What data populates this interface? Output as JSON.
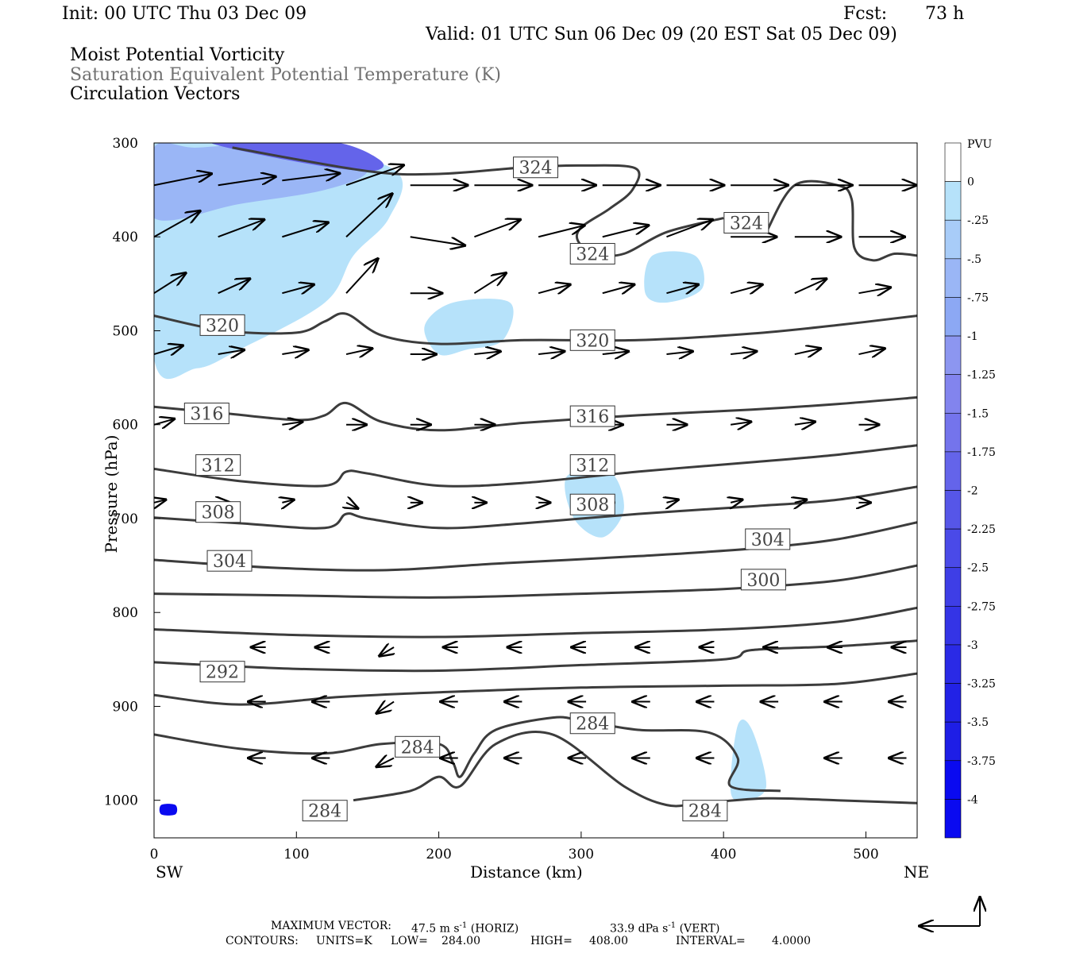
{
  "header": {
    "init": "Init: 00 UTC Thu 03 Dec 09",
    "fcst_label": "Fcst:",
    "fcst_hours": "73 h",
    "valid": "Valid: 01 UTC Sun 06 Dec 09 (20 EST Sat 05 Dec 09)",
    "field1": "Moist Potential Vorticity",
    "field2": "Saturation Equivalent Potential Temperature (K)",
    "field3": "Circulation Vectors"
  },
  "footer": {
    "max_vector_label": "MAXIMUM VECTOR:",
    "max_horiz": "47.5 m s",
    "max_horiz_unit": "(HORIZ)",
    "max_vert": "33.9 dPa s",
    "max_vert_unit": "(VERT)",
    "exp": "-1",
    "contours_label": "CONTOURS:",
    "units": "UNITS=K",
    "low_label": "LOW=",
    "low": "284.00",
    "high_label": "HIGH=",
    "high": "408.00",
    "interval_label": "INTERVAL=",
    "interval": "4.0000"
  },
  "colors": {
    "contour": "#3c3c3c",
    "arrow": "#000000",
    "pv_light": "#b6e2fa",
    "pv_mid": "#8c96f0",
    "pv_dark": "#1e1ee6"
  },
  "chart_data": {
    "type": "cross-section",
    "xlabel": "Distance (km)",
    "ylabel": "Pressure (hPa)",
    "x_ticks": [
      0,
      100,
      200,
      300,
      400,
      500
    ],
    "y_ticks": [
      300,
      400,
      500,
      600,
      700,
      800,
      900,
      1000
    ],
    "xlim": [
      0,
      536
    ],
    "ylim": [
      300,
      1040
    ],
    "y_inverted": true,
    "left_end_label": "SW",
    "right_end_label": "NE",
    "colorbar": {
      "label": "PVU",
      "levels": [
        0,
        -0.25,
        -0.5,
        -0.75,
        -1,
        -1.25,
        -1.5,
        -1.75,
        -2,
        -2.25,
        -2.5,
        -2.75,
        -3,
        -3.25,
        -3.5,
        -3.75,
        -4
      ],
      "level_labels": [
        "0",
        "-.25",
        "-.5",
        "-.75",
        "-1",
        "-1.25",
        "-1.5",
        "-1.75",
        "-2",
        "-2.25",
        "-2.5",
        "-2.75",
        "-3",
        "-3.25",
        "-3.5",
        "-3.75",
        "-4"
      ],
      "colors": [
        "#ffffff",
        "#b6e2fa",
        "#a8ccf8",
        "#9ab6f6",
        "#8ca8f4",
        "#8c96f0",
        "#8284ee",
        "#7474ec",
        "#6464ea",
        "#5656e8",
        "#4a4ae8",
        "#3e3ee6",
        "#3434e6",
        "#2a2ae6",
        "#2222e6",
        "#1e1ee6",
        "#0a0af0"
      ]
    },
    "contour_labels": [
      {
        "value": "324",
        "x": 268,
        "p": 326
      },
      {
        "value": "324",
        "x": 416,
        "p": 385
      },
      {
        "value": "324",
        "x": 308,
        "p": 418
      },
      {
        "value": "320",
        "x": 48,
        "p": 494
      },
      {
        "value": "320",
        "x": 308,
        "p": 510
      },
      {
        "value": "316",
        "x": 37,
        "p": 588
      },
      {
        "value": "316",
        "x": 308,
        "p": 591
      },
      {
        "value": "312",
        "x": 45,
        "p": 643
      },
      {
        "value": "312",
        "x": 308,
        "p": 643
      },
      {
        "value": "308",
        "x": 45,
        "p": 693
      },
      {
        "value": "308",
        "x": 308,
        "p": 685
      },
      {
        "value": "304",
        "x": 53,
        "p": 745
      },
      {
        "value": "304",
        "x": 431,
        "p": 722
      },
      {
        "value": "300",
        "x": 428,
        "p": 765
      },
      {
        "value": "292",
        "x": 48,
        "p": 863
      },
      {
        "value": "284",
        "x": 308,
        "p": 918
      },
      {
        "value": "284",
        "x": 185,
        "p": 943
      },
      {
        "value": "284",
        "x": 120,
        "p": 1011
      },
      {
        "value": "284",
        "x": 387,
        "p": 1011
      }
    ],
    "contours": [
      {
        "value": 324,
        "x": [
          55,
          150,
          200,
          260,
          300,
          338,
          336,
          320,
          300,
          298,
          310,
          330,
          360,
          400
        ],
        "p": [
          305,
          330,
          333,
          326,
          324,
          327,
          350,
          370,
          390,
          405,
          418,
          418,
          395,
          380
        ]
      },
      {
        "value": 324,
        "x": [
          430,
          450,
          480,
          490,
          492,
          505,
          520,
          536
        ],
        "p": [
          395,
          345,
          345,
          360,
          412,
          425,
          418,
          420
        ]
      },
      {
        "value": 320,
        "x": [
          0,
          50,
          100,
          120,
          135,
          160,
          200,
          260,
          340,
          420,
          480,
          536
        ],
        "p": [
          484,
          500,
          502,
          490,
          482,
          505,
          514,
          510,
          510,
          503,
          494,
          484
        ]
      },
      {
        "value": 316,
        "x": [
          0,
          50,
          100,
          120,
          135,
          160,
          200,
          260,
          340,
          420,
          480,
          536
        ],
        "p": [
          581,
          588,
          595,
          590,
          577,
          597,
          606,
          598,
          590,
          584,
          578,
          571
        ]
      },
      {
        "value": 312,
        "x": [
          0,
          60,
          120,
          135,
          150,
          200,
          260,
          340,
          420,
          480,
          536
        ],
        "p": [
          647,
          660,
          665,
          650,
          652,
          665,
          662,
          650,
          640,
          632,
          622
        ]
      },
      {
        "value": 308,
        "x": [
          0,
          60,
          120,
          135,
          150,
          200,
          260,
          340,
          420,
          480,
          536
        ],
        "p": [
          699,
          705,
          710,
          695,
          700,
          710,
          705,
          695,
          687,
          680,
          666
        ]
      },
      {
        "value": 304,
        "x": [
          0,
          80,
          160,
          240,
          340,
          420,
          480,
          536
        ],
        "p": [
          744,
          752,
          755,
          748,
          740,
          732,
          722,
          704
        ]
      },
      {
        "value": 300,
        "x": [
          0,
          100,
          200,
          300,
          400,
          480,
          536
        ],
        "p": [
          780,
          782,
          784,
          780,
          775,
          766,
          750
        ]
      },
      {
        "value": 296,
        "x": [
          0,
          100,
          200,
          300,
          400,
          480,
          536
        ],
        "p": [
          818,
          824,
          826,
          822,
          818,
          810,
          795
        ]
      },
      {
        "value": 292,
        "x": [
          0,
          100,
          200,
          300,
          400,
          420,
          480,
          536
        ],
        "p": [
          853,
          860,
          862,
          856,
          850,
          840,
          836,
          830
        ]
      },
      {
        "value": 288,
        "x": [
          0,
          60,
          130,
          200,
          300,
          400,
          480,
          536
        ],
        "p": [
          888,
          898,
          890,
          885,
          880,
          878,
          876,
          865
        ]
      },
      {
        "value": 284,
        "x": [
          0,
          60,
          120,
          160,
          200,
          210,
          215,
          225,
          240,
          280,
          300,
          340,
          390,
          410,
          405,
          440
        ],
        "p": [
          930,
          945,
          950,
          940,
          940,
          960,
          975,
          950,
          925,
          912,
          915,
          925,
          928,
          955,
          985,
          990
        ]
      },
      {
        "value": 284,
        "x": [
          140,
          180,
          200,
          215,
          240,
          280,
          330,
          360,
          385,
          430,
          480,
          536
        ],
        "p": [
          1000,
          990,
          975,
          985,
          940,
          930,
          985,
          1005,
          1003,
          998,
          1000,
          1003
        ]
      }
    ],
    "pv_patches": [
      {
        "level": -0.25,
        "x": [
          0,
          10,
          50,
          100,
          170,
          165,
          140,
          120,
          60,
          30,
          0
        ],
        "p": [
          300,
          300,
          300,
          300,
          330,
          380,
          420,
          470,
          520,
          540,
          530
        ]
      },
      {
        "level": -0.25,
        "x": [
          190,
          210,
          250,
          245,
          220,
          200
        ],
        "p": [
          495,
          470,
          470,
          510,
          520,
          525
        ]
      },
      {
        "level": -0.25,
        "x": [
          290,
          320,
          330,
          315,
          295
        ],
        "p": [
          655,
          650,
          690,
          720,
          700
        ]
      },
      {
        "level": -0.25,
        "x": [
          350,
          380,
          385,
          360,
          345
        ],
        "p": [
          420,
          420,
          455,
          470,
          460
        ]
      },
      {
        "level": -0.25,
        "x": [
          410,
          420,
          430,
          415,
          405
        ],
        "p": [
          920,
          925,
          985,
          1000,
          990
        ]
      },
      {
        "level": -0.75,
        "x": [
          0,
          30,
          80,
          130,
          150,
          120,
          60,
          0
        ],
        "p": [
          305,
          305,
          300,
          305,
          330,
          350,
          365,
          380
        ]
      },
      {
        "level": -2.0,
        "x": [
          40,
          80,
          130,
          160,
          150,
          100
        ],
        "p": [
          300,
          300,
          300,
          320,
          330,
          320
        ]
      },
      {
        "level": -4.0,
        "x": [
          5,
          15,
          15,
          5
        ],
        "p": [
          1005,
          1005,
          1015,
          1015
        ]
      }
    ],
    "vectors": [
      {
        "x": 0,
        "p": 345,
        "u": 40,
        "w": 8
      },
      {
        "x": 45,
        "p": 345,
        "u": 40,
        "w": 6
      },
      {
        "x": 90,
        "p": 340,
        "u": 40,
        "w": 5
      },
      {
        "x": 135,
        "p": 345,
        "u": 40,
        "w": 14
      },
      {
        "x": 180,
        "p": 345,
        "u": 40,
        "w": 0
      },
      {
        "x": 225,
        "p": 345,
        "u": 40,
        "w": 0
      },
      {
        "x": 270,
        "p": 345,
        "u": 40,
        "w": 0
      },
      {
        "x": 315,
        "p": 345,
        "u": 40,
        "w": 0
      },
      {
        "x": 360,
        "p": 345,
        "u": 40,
        "w": 0
      },
      {
        "x": 405,
        "p": 345,
        "u": 40,
        "w": 0
      },
      {
        "x": 450,
        "p": 345,
        "u": 40,
        "w": 0
      },
      {
        "x": 495,
        "p": 345,
        "u": 40,
        "w": 0
      },
      {
        "x": 0,
        "p": 400,
        "u": 32,
        "w": 18
      },
      {
        "x": 45,
        "p": 400,
        "u": 32,
        "w": 12
      },
      {
        "x": 90,
        "p": 400,
        "u": 32,
        "w": 10
      },
      {
        "x": 135,
        "p": 400,
        "u": 32,
        "w": 30
      },
      {
        "x": 180,
        "p": 400,
        "u": 38,
        "w": -6
      },
      {
        "x": 225,
        "p": 400,
        "u": 32,
        "w": 12
      },
      {
        "x": 270,
        "p": 400,
        "u": 32,
        "w": 8
      },
      {
        "x": 315,
        "p": 400,
        "u": 32,
        "w": 8
      },
      {
        "x": 360,
        "p": 400,
        "u": 32,
        "w": 12
      },
      {
        "x": 405,
        "p": 400,
        "u": 32,
        "w": 0
      },
      {
        "x": 450,
        "p": 400,
        "u": 32,
        "w": 0
      },
      {
        "x": 495,
        "p": 400,
        "u": 32,
        "w": 0
      },
      {
        "x": 0,
        "p": 460,
        "u": 22,
        "w": 14
      },
      {
        "x": 45,
        "p": 460,
        "u": 22,
        "w": 10
      },
      {
        "x": 90,
        "p": 460,
        "u": 22,
        "w": 6
      },
      {
        "x": 135,
        "p": 460,
        "u": 22,
        "w": 24
      },
      {
        "x": 180,
        "p": 460,
        "u": 22,
        "w": 0
      },
      {
        "x": 225,
        "p": 460,
        "u": 22,
        "w": 14
      },
      {
        "x": 270,
        "p": 460,
        "u": 22,
        "w": 6
      },
      {
        "x": 315,
        "p": 460,
        "u": 22,
        "w": 6
      },
      {
        "x": 360,
        "p": 460,
        "u": 22,
        "w": 6
      },
      {
        "x": 405,
        "p": 460,
        "u": 22,
        "w": 6
      },
      {
        "x": 450,
        "p": 460,
        "u": 22,
        "w": 10
      },
      {
        "x": 495,
        "p": 460,
        "u": 22,
        "w": 4
      },
      {
        "x": 0,
        "p": 525,
        "u": 20,
        "w": 6
      },
      {
        "x": 45,
        "p": 525,
        "u": 18,
        "w": 3
      },
      {
        "x": 90,
        "p": 525,
        "u": 18,
        "w": 3
      },
      {
        "x": 135,
        "p": 525,
        "u": 18,
        "w": 4
      },
      {
        "x": 180,
        "p": 525,
        "u": 18,
        "w": 0
      },
      {
        "x": 225,
        "p": 525,
        "u": 18,
        "w": 2
      },
      {
        "x": 270,
        "p": 525,
        "u": 18,
        "w": 2
      },
      {
        "x": 315,
        "p": 525,
        "u": 18,
        "w": 2
      },
      {
        "x": 360,
        "p": 525,
        "u": 18,
        "w": 2
      },
      {
        "x": 405,
        "p": 525,
        "u": 18,
        "w": 2
      },
      {
        "x": 450,
        "p": 525,
        "u": 18,
        "w": 4
      },
      {
        "x": 495,
        "p": 525,
        "u": 18,
        "w": 4
      },
      {
        "x": 0,
        "p": 600,
        "u": 14,
        "w": 4
      },
      {
        "x": 90,
        "p": 600,
        "u": 14,
        "w": 2
      },
      {
        "x": 135,
        "p": 600,
        "u": 14,
        "w": 0
      },
      {
        "x": 180,
        "p": 600,
        "u": 14,
        "w": 0
      },
      {
        "x": 225,
        "p": 600,
        "u": 14,
        "w": 0
      },
      {
        "x": 315,
        "p": 600,
        "u": 14,
        "w": 0
      },
      {
        "x": 360,
        "p": 600,
        "u": 14,
        "w": 0
      },
      {
        "x": 405,
        "p": 600,
        "u": 14,
        "w": 2
      },
      {
        "x": 450,
        "p": 600,
        "u": 14,
        "w": 2
      },
      {
        "x": 495,
        "p": 600,
        "u": 14,
        "w": 0
      },
      {
        "x": 0,
        "p": 683,
        "u": 8,
        "w": 2
      },
      {
        "x": 45,
        "p": 683,
        "u": 8,
        "w": 0
      },
      {
        "x": 90,
        "p": 683,
        "u": 8,
        "w": 2
      },
      {
        "x": 135,
        "p": 683,
        "u": 8,
        "w": -4
      },
      {
        "x": 180,
        "p": 683,
        "u": 8,
        "w": 0
      },
      {
        "x": 225,
        "p": 683,
        "u": 8,
        "w": 0
      },
      {
        "x": 270,
        "p": 683,
        "u": 8,
        "w": 0
      },
      {
        "x": 315,
        "p": 683,
        "u": 8,
        "w": 0
      },
      {
        "x": 360,
        "p": 683,
        "u": 8,
        "w": 2
      },
      {
        "x": 405,
        "p": 683,
        "u": 8,
        "w": 2
      },
      {
        "x": 450,
        "p": 683,
        "u": 8,
        "w": 2
      },
      {
        "x": 495,
        "p": 683,
        "u": 8,
        "w": 0
      },
      {
        "x": 45,
        "p": 837,
        "u": -10,
        "w": 0
      },
      {
        "x": 90,
        "p": 837,
        "u": -10,
        "w": 0
      },
      {
        "x": 135,
        "p": 837,
        "u": -10,
        "w": -6
      },
      {
        "x": 180,
        "p": 837,
        "u": -10,
        "w": 0
      },
      {
        "x": 225,
        "p": 837,
        "u": -10,
        "w": 0
      },
      {
        "x": 270,
        "p": 837,
        "u": -10,
        "w": 0
      },
      {
        "x": 315,
        "p": 837,
        "u": -10,
        "w": 0
      },
      {
        "x": 360,
        "p": 837,
        "u": -10,
        "w": 0
      },
      {
        "x": 405,
        "p": 837,
        "u": -10,
        "w": 0
      },
      {
        "x": 450,
        "p": 837,
        "u": -10,
        "w": 0
      },
      {
        "x": 495,
        "p": 837,
        "u": -10,
        "w": 0
      },
      {
        "x": 45,
        "p": 895,
        "u": -12,
        "w": 0
      },
      {
        "x": 90,
        "p": 895,
        "u": -12,
        "w": 0
      },
      {
        "x": 135,
        "p": 895,
        "u": -12,
        "w": -8
      },
      {
        "x": 180,
        "p": 895,
        "u": -12,
        "w": 0
      },
      {
        "x": 225,
        "p": 895,
        "u": -12,
        "w": 0
      },
      {
        "x": 270,
        "p": 895,
        "u": -12,
        "w": 0
      },
      {
        "x": 315,
        "p": 895,
        "u": -12,
        "w": 0
      },
      {
        "x": 360,
        "p": 895,
        "u": -12,
        "w": 0
      },
      {
        "x": 405,
        "p": 895,
        "u": -12,
        "w": 0
      },
      {
        "x": 450,
        "p": 895,
        "u": -12,
        "w": 0
      },
      {
        "x": 495,
        "p": 895,
        "u": -12,
        "w": 0
      },
      {
        "x": 45,
        "p": 955,
        "u": -12,
        "w": 0
      },
      {
        "x": 90,
        "p": 955,
        "u": -12,
        "w": 0
      },
      {
        "x": 135,
        "p": 955,
        "u": -12,
        "w": -6
      },
      {
        "x": 180,
        "p": 955,
        "u": -12,
        "w": 0
      },
      {
        "x": 225,
        "p": 955,
        "u": -12,
        "w": 0
      },
      {
        "x": 270,
        "p": 955,
        "u": -12,
        "w": 0
      },
      {
        "x": 315,
        "p": 955,
        "u": -12,
        "w": 0
      },
      {
        "x": 360,
        "p": 955,
        "u": -12,
        "w": 0
      },
      {
        "x": 450,
        "p": 955,
        "u": -12,
        "w": 0
      },
      {
        "x": 495,
        "p": 955,
        "u": -12,
        "w": 0
      }
    ]
  }
}
